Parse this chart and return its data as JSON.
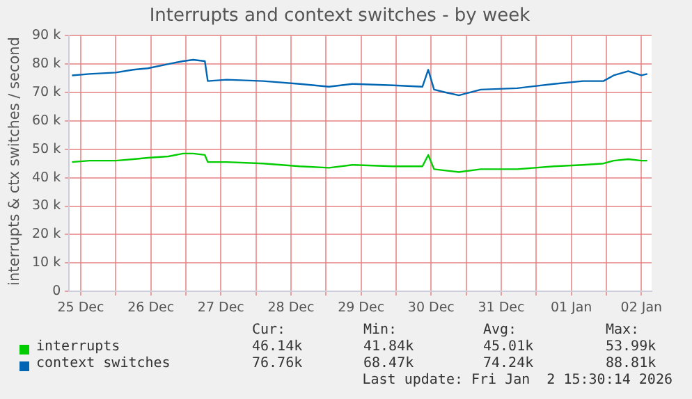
{
  "chart_data": {
    "type": "line",
    "title": "Interrupts and context switches - by week",
    "ylabel": "interrupts & ctx switches / second",
    "x": [
      "2025-12-25T09:00",
      "2025-12-25T15:00",
      "2025-12-26T00:00",
      "2025-12-26T06:00",
      "2025-12-26T11:00",
      "2025-12-26T18:00",
      "2025-12-26T23:00",
      "2025-12-27T02:30",
      "2025-12-27T06:30",
      "2025-12-27T07:30",
      "2025-12-27T14:00",
      "2025-12-28T02:30",
      "2025-12-28T15:00",
      "2025-12-29T01:00",
      "2025-12-29T09:00",
      "2025-12-29T23:00",
      "2025-12-30T09:00",
      "2025-12-30T11:00",
      "2025-12-30T13:00",
      "2025-12-30T17:00",
      "2025-12-30T21:30",
      "2025-12-31T05:00",
      "2025-12-31T17:30",
      "2026-01-01T06:00",
      "2026-01-01T16:00",
      "2026-01-01T23:00",
      "2026-01-02T02:30",
      "2026-01-02T07:30",
      "2026-01-02T12:00",
      "2026-01-02T14:00"
    ],
    "series": [
      {
        "name": "interrupts",
        "color": "#00cc00",
        "values": [
          45500,
          46000,
          46000,
          46500,
          47000,
          47500,
          48500,
          48500,
          48000,
          45500,
          45500,
          45000,
          44000,
          43500,
          44500,
          44000,
          44000,
          48000,
          43000,
          42500,
          42000,
          43000,
          43000,
          44000,
          44500,
          45000,
          46000,
          46500,
          46000,
          46000
        ]
      },
      {
        "name": "context switches",
        "color": "#0066b3",
        "values": [
          76000,
          76500,
          77000,
          78000,
          78500,
          80000,
          81000,
          81500,
          81000,
          74000,
          74500,
          74000,
          73000,
          72000,
          73000,
          72500,
          72000,
          78000,
          71000,
          70000,
          69000,
          71000,
          71500,
          73000,
          74000,
          74000,
          76000,
          77500,
          76000,
          76500
        ]
      }
    ],
    "xlim": [
      "2025-12-25T08:00",
      "2026-01-02T15:30"
    ],
    "xticks": [
      {
        "value": "2025-12-25T12:00",
        "label": "25 Dec"
      },
      {
        "value": "2025-12-26T00:00",
        "label": null
      },
      {
        "value": "2025-12-26T12:00",
        "label": "26 Dec"
      },
      {
        "value": "2025-12-27T00:00",
        "label": null
      },
      {
        "value": "2025-12-27T12:00",
        "label": "27 Dec"
      },
      {
        "value": "2025-12-28T00:00",
        "label": null
      },
      {
        "value": "2025-12-28T12:00",
        "label": "28 Dec"
      },
      {
        "value": "2025-12-29T00:00",
        "label": null
      },
      {
        "value": "2025-12-29T12:00",
        "label": "29 Dec"
      },
      {
        "value": "2025-12-30T00:00",
        "label": null
      },
      {
        "value": "2025-12-30T12:00",
        "label": "30 Dec"
      },
      {
        "value": "2025-12-31T00:00",
        "label": null
      },
      {
        "value": "2025-12-31T12:00",
        "label": "31 Dec"
      },
      {
        "value": "2026-01-01T00:00",
        "label": null
      },
      {
        "value": "2026-01-01T12:00",
        "label": "01 Jan"
      },
      {
        "value": "2026-01-02T00:00",
        "label": null
      },
      {
        "value": "2026-01-02T12:00",
        "label": "02 Jan"
      }
    ],
    "ylim": [
      0,
      90000
    ],
    "yticks": [
      0,
      {
        "value": 10000,
        "label": "10 k"
      },
      {
        "value": 20000,
        "label": "20 k"
      },
      {
        "value": 30000,
        "label": "30 k"
      },
      {
        "value": 40000,
        "label": "40 k"
      },
      {
        "value": 50000,
        "label": "50 k"
      },
      {
        "value": 60000,
        "label": "60 k"
      },
      {
        "value": 70000,
        "label": "70 k"
      },
      {
        "value": 80000,
        "label": "80 k"
      },
      {
        "value": 90000,
        "label": "90 k"
      }
    ],
    "grid": true,
    "legend": "bottom left",
    "marker": "none",
    "line_style": "solid",
    "annotations": [
      "Cur:",
      "Min:",
      "Avg:",
      "Max:",
      "46.14k",
      "41.84k",
      "45.01k",
      "53.99k",
      "76.76k",
      "68.47k",
      "74.24k",
      "88.81k",
      "Last update: Fri Jan  2 15:30:14 2026"
    ]
  }
}
